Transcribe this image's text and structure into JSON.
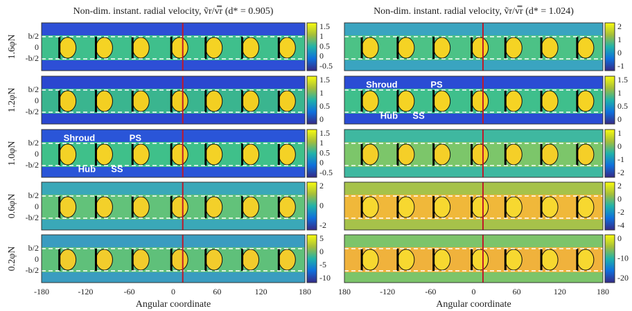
{
  "panels": [
    {
      "title": "Non-dim. instant. radial velocity, ṽr/v̿r (d* = 0.905)",
      "x_ticks": [
        "-180",
        "-120",
        "-60",
        "0",
        "60",
        "120",
        "180"
      ],
      "x_label": "Angular coordinate",
      "rows": [
        {
          "colorbar_ticks": [
            "1.5",
            "1",
            "0.5",
            "0",
            "-0.5"
          ]
        },
        {
          "colorbar_ticks": [
            "1.5",
            "1",
            "0.5",
            "0"
          ]
        },
        {
          "colorbar_ticks": [
            "1.5",
            "1",
            "0.5",
            "0",
            "-0.5"
          ],
          "annotations": [
            "Shroud",
            "PS",
            "Hub",
            "SS"
          ]
        },
        {
          "colorbar_ticks": [
            "2",
            "0",
            "-2"
          ]
        },
        {
          "colorbar_ticks": [
            "5",
            "0",
            "-5",
            "-10"
          ]
        }
      ]
    },
    {
      "title": "Non-dim. instant. radial velocity, ṽr/v̿r (d* = 1.024)",
      "x_ticks": [
        "180",
        "-120",
        "-60",
        "0",
        "60",
        "120",
        "180"
      ],
      "x_label": "Angular coordinate",
      "rows": [
        {
          "colorbar_ticks": [
            "2",
            "1",
            "0",
            "-1"
          ]
        },
        {
          "colorbar_ticks": [
            "1.5",
            "1",
            "0.5",
            "0"
          ],
          "annotations": [
            "Shroud",
            "PS",
            "Hub",
            "SS"
          ]
        },
        {
          "colorbar_ticks": [
            "1",
            "0",
            "-1",
            "-2"
          ]
        },
        {
          "colorbar_ticks": [
            "2",
            "0",
            "-2",
            "-4"
          ]
        },
        {
          "colorbar_ticks": [
            "0",
            "-10",
            "-20"
          ]
        }
      ]
    }
  ],
  "row_labels": [
    "1.6φN",
    "1.2φN",
    "1.0φN",
    "0.6φN",
    "0.2φN"
  ],
  "y_ticks": [
    "b/2",
    "0",
    "-b/2"
  ]
}
